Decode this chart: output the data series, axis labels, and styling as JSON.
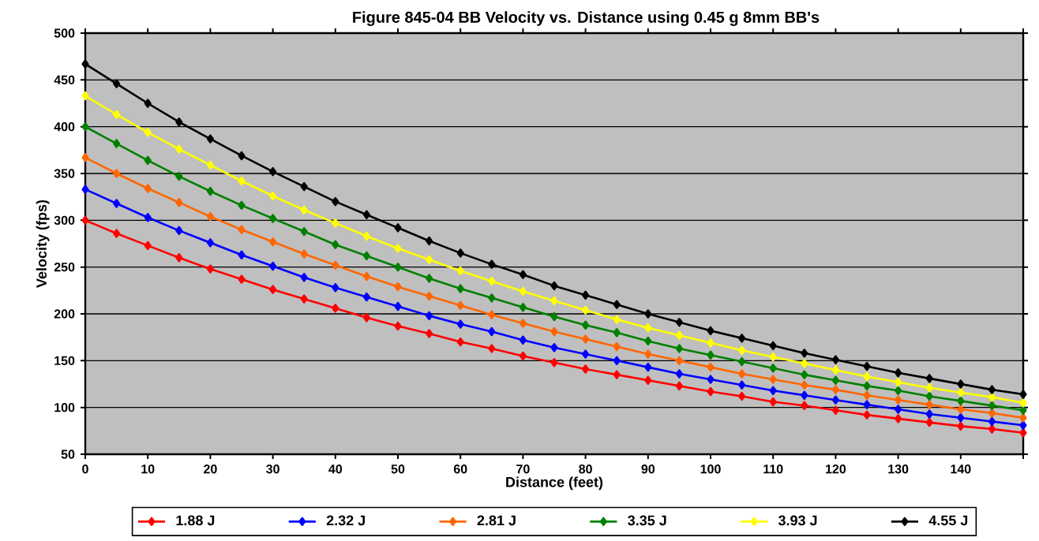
{
  "chart_data": {
    "type": "line",
    "title": "Figure 845-04  BB Velocity vs. Distance using 0.45 g 8mm BB's",
    "xlabel": "Distance (feet)",
    "ylabel": "Velocity (fps)",
    "x": [
      0,
      5,
      10,
      15,
      20,
      25,
      30,
      35,
      40,
      45,
      50,
      55,
      60,
      65,
      70,
      75,
      80,
      85,
      90,
      95,
      100,
      105,
      110,
      115,
      120,
      125,
      130,
      135,
      140,
      145,
      150
    ],
    "xlim": [
      0,
      150
    ],
    "xticks": [
      0,
      10,
      20,
      30,
      40,
      50,
      60,
      70,
      80,
      90,
      100,
      110,
      120,
      130,
      140,
      {
        "value": 150,
        "label": null
      }
    ],
    "ylim": [
      50,
      500
    ],
    "yticks": [
      50,
      100,
      150,
      200,
      250,
      300,
      350,
      400,
      450,
      500
    ],
    "grid": "y",
    "legend": "bottom",
    "marker": "diamond",
    "line_style": "solid",
    "series": [
      {
        "name": "1.88 J",
        "color": "#ff0000",
        "values": [
          300,
          286,
          273,
          260,
          248,
          237,
          226,
          216,
          206,
          196,
          187,
          179,
          170,
          163,
          155,
          148,
          141,
          135,
          129,
          123,
          117,
          112,
          106,
          102,
          97,
          92,
          88,
          84,
          80,
          77,
          73
        ]
      },
      {
        "name": "2.32 J",
        "color": "#0000ff",
        "values": [
          333,
          318,
          303,
          289,
          276,
          263,
          251,
          239,
          228,
          218,
          208,
          198,
          189,
          181,
          172,
          164,
          157,
          150,
          143,
          136,
          130,
          124,
          118,
          113,
          108,
          103,
          98,
          93,
          89,
          85,
          81
        ]
      },
      {
        "name": "2.81 J",
        "color": "#ff6600",
        "values": [
          367,
          350,
          334,
          319,
          304,
          290,
          277,
          264,
          252,
          240,
          229,
          219,
          209,
          199,
          190,
          181,
          173,
          165,
          157,
          150,
          143,
          136,
          130,
          124,
          119,
          113,
          108,
          103,
          98,
          94,
          89
        ]
      },
      {
        "name": "3.35 J",
        "color": "#008000",
        "values": [
          400,
          382,
          364,
          347,
          331,
          316,
          302,
          288,
          274,
          262,
          250,
          238,
          227,
          217,
          207,
          197,
          188,
          180,
          171,
          163,
          156,
          149,
          142,
          135,
          129,
          123,
          118,
          112,
          107,
          102,
          97
        ]
      },
      {
        "name": "3.93 J",
        "color": "#ffff00",
        "values": [
          433,
          413,
          394,
          376,
          359,
          342,
          326,
          311,
          297,
          283,
          270,
          258,
          246,
          235,
          224,
          214,
          204,
          194,
          185,
          177,
          169,
          161,
          154,
          147,
          140,
          133,
          127,
          121,
          116,
          111,
          105
        ]
      },
      {
        "name": "4.55 J",
        "color": "#000000",
        "values": [
          467,
          446,
          425,
          405,
          387,
          369,
          352,
          336,
          320,
          306,
          292,
          278,
          265,
          253,
          242,
          230,
          220,
          210,
          200,
          191,
          182,
          174,
          166,
          158,
          151,
          144,
          137,
          131,
          125,
          119,
          114
        ]
      }
    ]
  }
}
